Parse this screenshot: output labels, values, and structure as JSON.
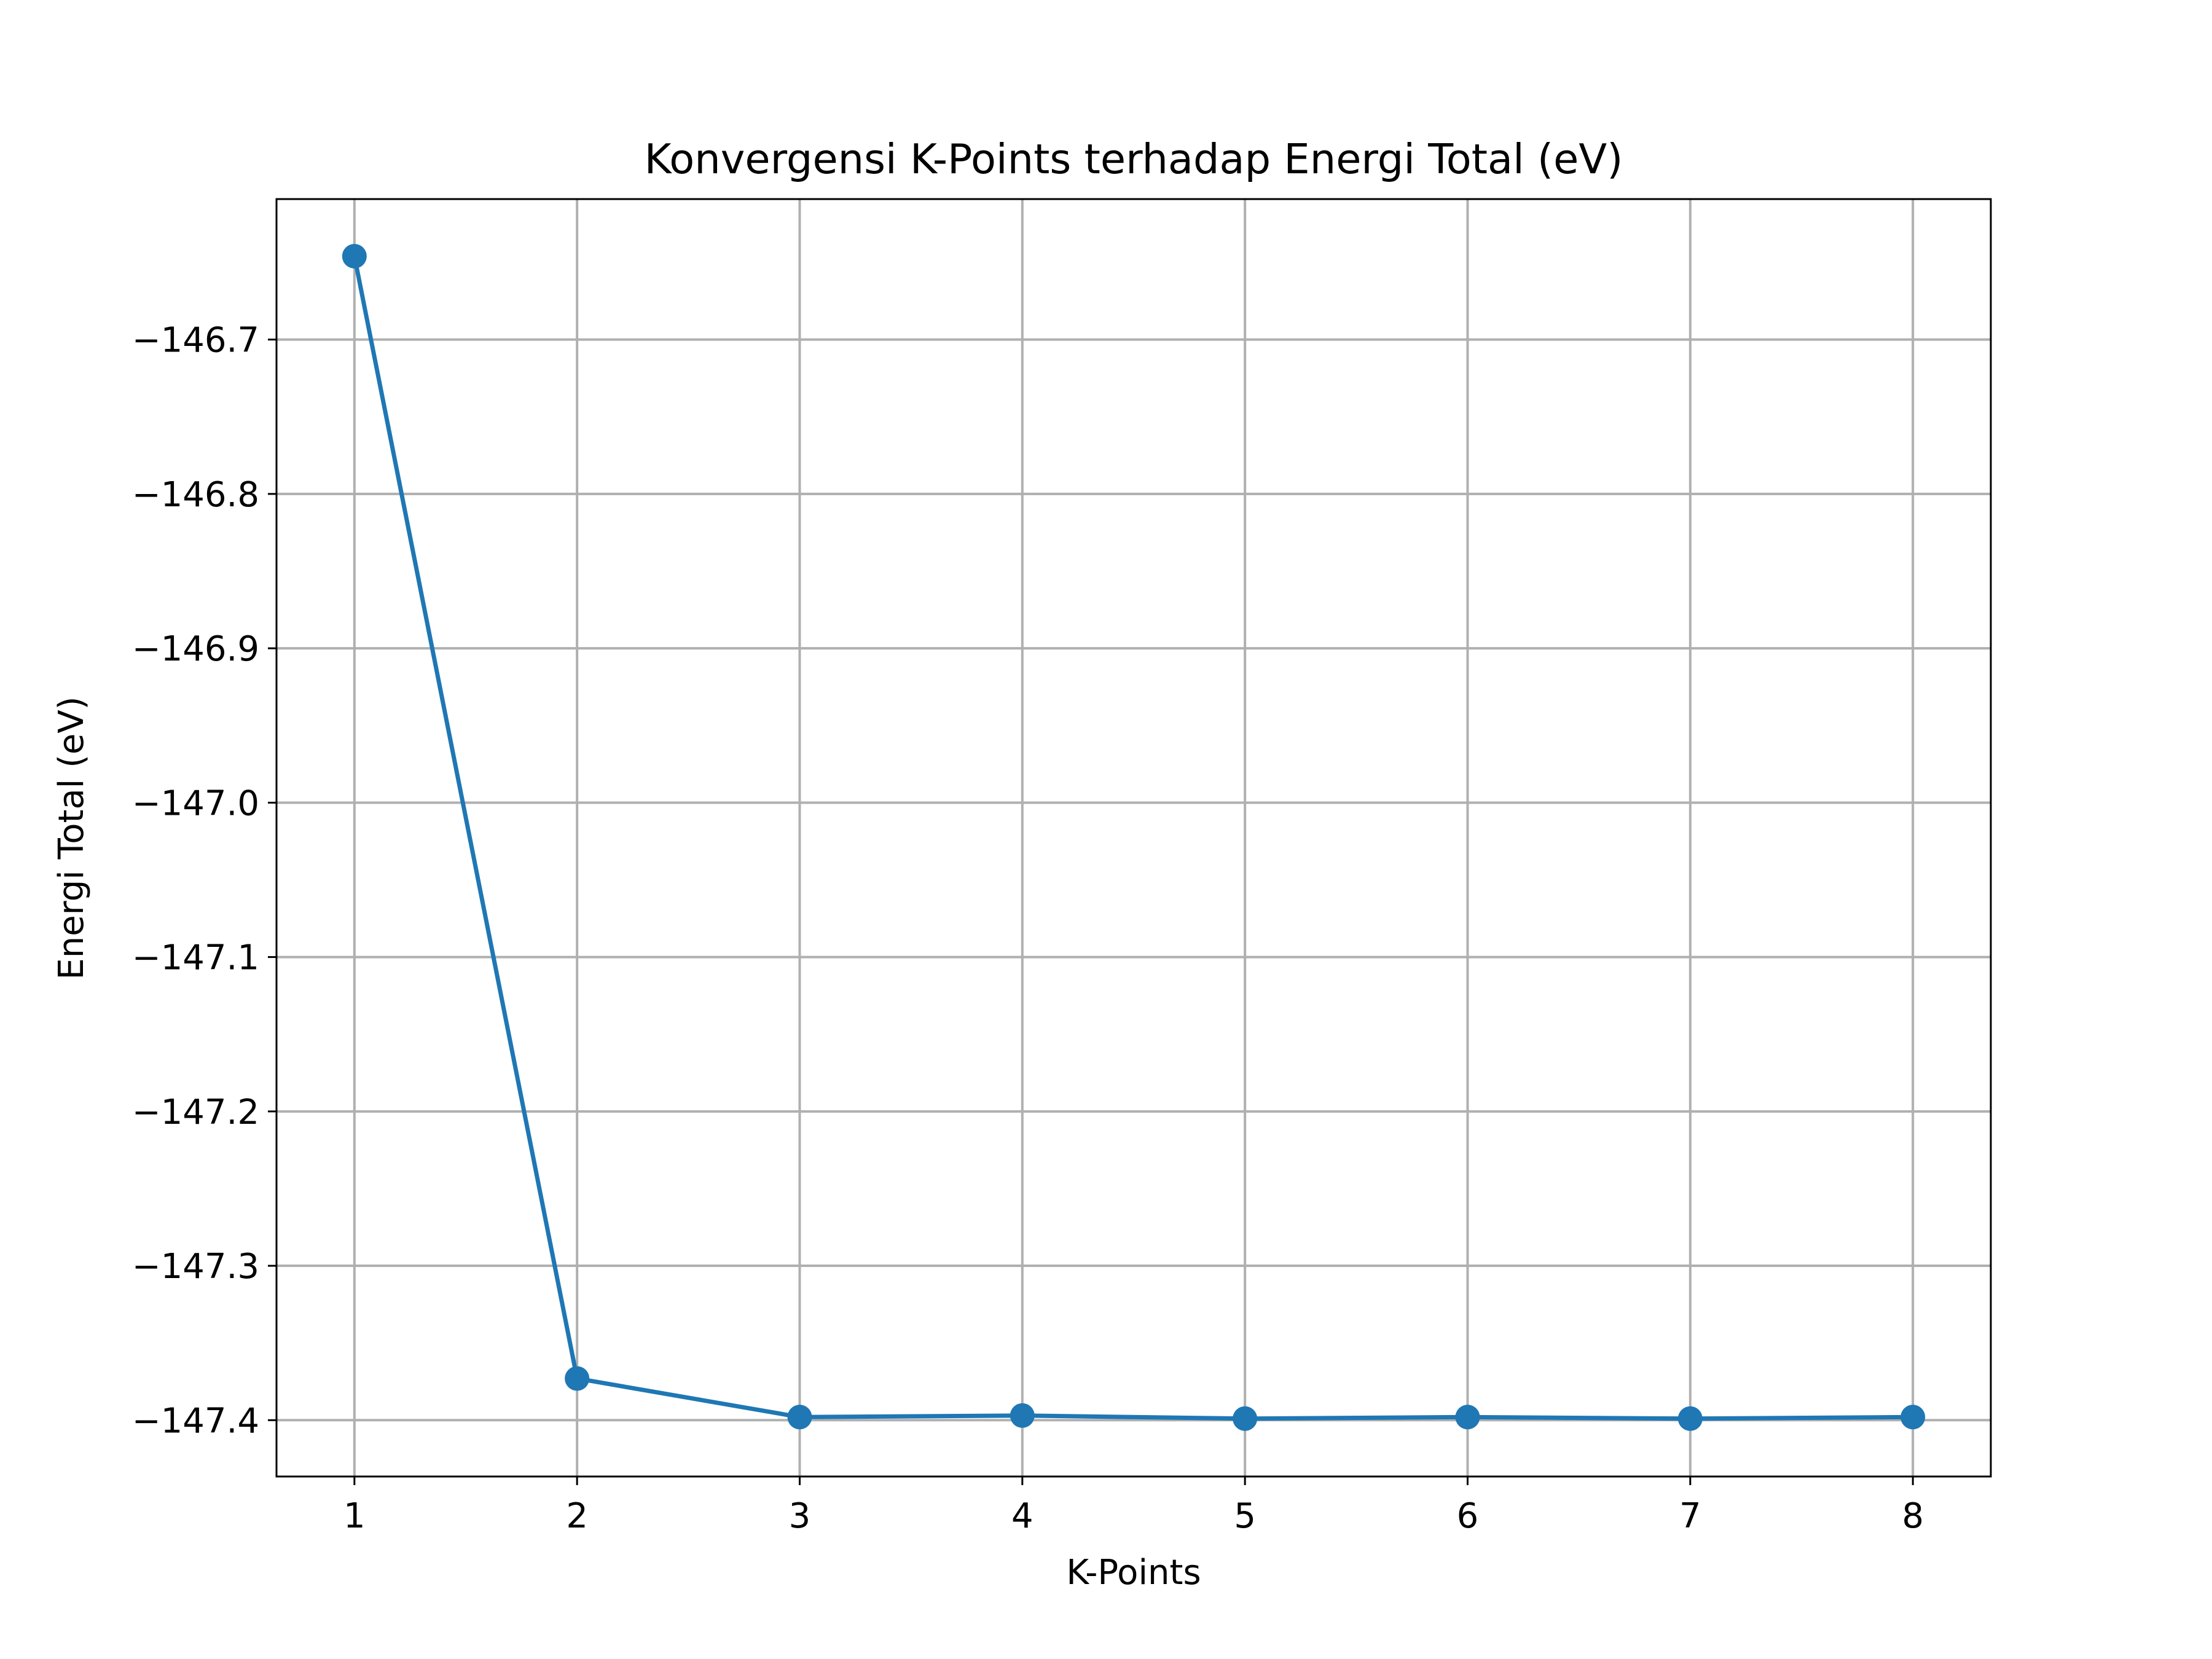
{
  "chart_data": {
    "type": "line",
    "title": "Konvergensi K-Points terhadap Energi Total (eV)",
    "xlabel": "K-Points",
    "ylabel": "Energi Total (eV)",
    "x": [
      1,
      2,
      3,
      4,
      5,
      6,
      7,
      8
    ],
    "series": [
      {
        "values": [
          -146.646,
          -147.373,
          -147.398,
          -147.397,
          -147.399,
          -147.398,
          -147.399,
          -147.398
        ],
        "color": "#1f77b4",
        "marker": "circle"
      }
    ],
    "xlim": [
      0.65,
      8.35
    ],
    "ylim": [
      -147.4365,
      -146.609
    ],
    "xticks": [
      "1",
      "2",
      "3",
      "4",
      "5",
      "6",
      "7",
      "8"
    ],
    "yticks": [
      "−146.7",
      "−146.8",
      "−146.9",
      "−147.0",
      "−147.1",
      "−147.2",
      "−147.3",
      "−147.4"
    ],
    "ytick_values": [
      -146.7,
      -146.8,
      -146.9,
      -147.0,
      -147.1,
      -147.2,
      -147.3,
      -147.4
    ],
    "grid": true,
    "legend": "none"
  }
}
